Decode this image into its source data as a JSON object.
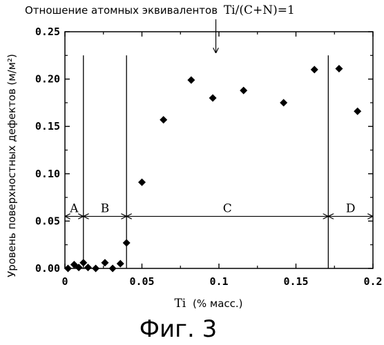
{
  "chart_data": {
    "type": "scatter",
    "title_prefix": "Отношение атомных эквивалентов",
    "title_formula": "Ti/(C+N)=1",
    "xlabel_formula": "Ti",
    "xlabel_unit": "(% масс.)",
    "ylabel": "Уровень поверхностных дефектов (м/м²)",
    "xlim": [
      0,
      0.2
    ],
    "ylim": [
      0,
      0.25
    ],
    "x_ticks": [
      "0",
      "0.05",
      "0.1",
      "0.15",
      "0.2"
    ],
    "x_tick_values": [
      0,
      0.05,
      0.1,
      0.15,
      0.2
    ],
    "y_ticks": [
      "0.00",
      "0.05",
      "0.10",
      "0.15",
      "0.20",
      "0.25"
    ],
    "y_tick_values": [
      0,
      0.05,
      0.1,
      0.15,
      0.2,
      0.25
    ],
    "points": [
      {
        "x": 0.002,
        "y": 0.0
      },
      {
        "x": 0.006,
        "y": 0.004
      },
      {
        "x": 0.009,
        "y": 0.001
      },
      {
        "x": 0.012,
        "y": 0.006
      },
      {
        "x": 0.015,
        "y": 0.001
      },
      {
        "x": 0.02,
        "y": 0.0
      },
      {
        "x": 0.026,
        "y": 0.006
      },
      {
        "x": 0.031,
        "y": 0.0
      },
      {
        "x": 0.036,
        "y": 0.005
      },
      {
        "x": 0.04,
        "y": 0.027
      },
      {
        "x": 0.05,
        "y": 0.091
      },
      {
        "x": 0.064,
        "y": 0.157
      },
      {
        "x": 0.082,
        "y": 0.199
      },
      {
        "x": 0.096,
        "y": 0.18
      },
      {
        "x": 0.116,
        "y": 0.188
      },
      {
        "x": 0.142,
        "y": 0.175
      },
      {
        "x": 0.162,
        "y": 0.21
      },
      {
        "x": 0.178,
        "y": 0.211
      },
      {
        "x": 0.19,
        "y": 0.166
      }
    ],
    "boundaries_x": [
      0.012,
      0.04,
      0.171
    ],
    "regions": [
      {
        "label": "A",
        "from": 0,
        "to": 0.012
      },
      {
        "label": "B",
        "from": 0.012,
        "to": 0.04
      },
      {
        "label": "C",
        "from": 0.04,
        "to": 0.171
      },
      {
        "label": "D",
        "from": 0.171,
        "to": 0.2
      }
    ],
    "region_arrow_y": 0.055,
    "annotation_arrow_x": 0.098,
    "marker": "diamond",
    "grid": false,
    "legend": "none"
  },
  "figure_caption": "Фиг. 3"
}
